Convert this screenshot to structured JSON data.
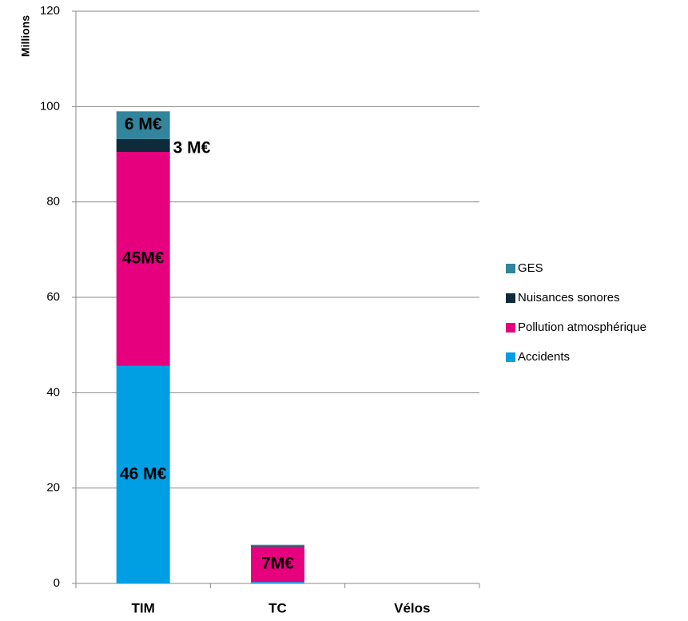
{
  "chart_data": {
    "type": "bar",
    "stacked": true,
    "y_label": "Millions",
    "categories": [
      "TIM",
      "TC",
      "Vélos"
    ],
    "series": [
      {
        "name": "Accidents",
        "color": "#009fe3",
        "values": [
          45.6,
          0.3,
          0
        ],
        "value_labels": [
          "46 M€",
          null,
          null
        ]
      },
      {
        "name": "Pollution atmosphérique",
        "color": "#e6007e",
        "values": [
          44.9,
          7.4,
          0
        ],
        "value_labels": [
          "45M€",
          "7M€",
          null
        ]
      },
      {
        "name": "Nuisances sonores",
        "color": "#0f2a3a",
        "values": [
          2.7,
          0.1,
          0
        ],
        "value_labels": [
          "3 M€",
          null,
          null
        ]
      },
      {
        "name": "GES",
        "color": "#31859c",
        "values": [
          5.8,
          0.3,
          0
        ],
        "value_labels": [
          "6 M€",
          null,
          null
        ]
      }
    ],
    "ylim": [
      0,
      120
    ],
    "yticks": [
      0,
      20,
      40,
      60,
      80,
      100,
      120
    ],
    "grid": true,
    "legend": "right"
  }
}
